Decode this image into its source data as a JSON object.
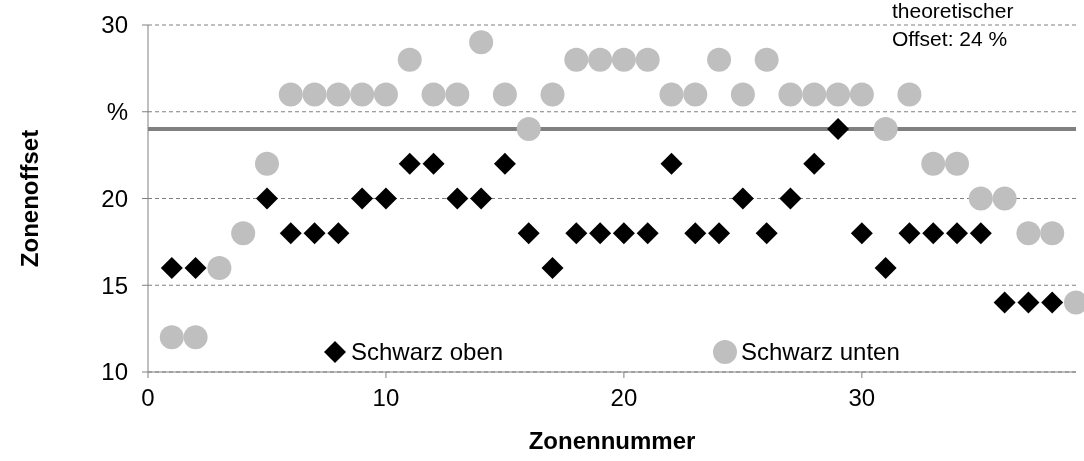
{
  "chart_data": {
    "type": "scatter",
    "xlabel": "Zonennummer",
    "ylabel": "Zonenoffset",
    "x": [
      1,
      2,
      3,
      4,
      5,
      6,
      7,
      8,
      9,
      10,
      11,
      12,
      13,
      14,
      15,
      16,
      17,
      18,
      19,
      20,
      21,
      22,
      23,
      24,
      25,
      26,
      27,
      28,
      29,
      30,
      31,
      32,
      33,
      34,
      35,
      36,
      37,
      38,
      39
    ],
    "series": [
      {
        "name": "Schwarz oben",
        "color": "#000000",
        "marker": "diamond",
        "values": [
          16,
          16,
          null,
          null,
          20,
          18,
          18,
          18,
          20,
          20,
          22,
          22,
          20,
          20,
          22,
          18,
          16,
          18,
          18,
          18,
          18,
          22,
          18,
          18,
          20,
          18,
          20,
          22,
          24,
          18,
          16,
          18,
          18,
          18,
          18,
          14,
          14,
          14,
          null
        ]
      },
      {
        "name": "Schwarz unten",
        "color": "#bfbfbf",
        "marker": "circle",
        "values": [
          12,
          12,
          16,
          18,
          22,
          26,
          26,
          26,
          26,
          26,
          28,
          26,
          26,
          29,
          26,
          24,
          26,
          28,
          28,
          28,
          28,
          26,
          26,
          28,
          26,
          28,
          26,
          26,
          26,
          26,
          24,
          26,
          22,
          22,
          20,
          20,
          18,
          18,
          14
        ]
      }
    ],
    "xlim": [
      0,
      39
    ],
    "xticks": [
      0,
      10,
      20,
      30
    ],
    "ylim": [
      10,
      30
    ],
    "yticks": [
      10,
      15,
      20,
      {
        "value": 25,
        "label": "%"
      },
      30
    ],
    "grid": "y",
    "legend": "bottom",
    "annotations": [
      "theoretischer Offset: 24 %"
    ],
    "ref_lines": [
      {
        "axis": "y",
        "value": 24,
        "color": "#808080"
      }
    ]
  }
}
